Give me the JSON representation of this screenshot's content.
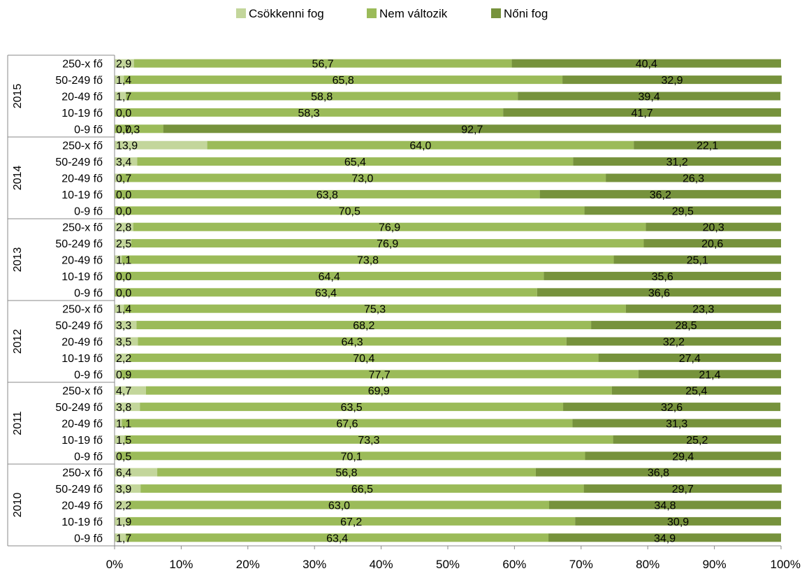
{
  "chart_data": {
    "type": "bar",
    "orientation": "horizontal",
    "stacked": "percent",
    "legend_position": "top",
    "grid": false,
    "xlim": [
      0,
      100
    ],
    "x_ticks": [
      "0%",
      "10%",
      "20%",
      "30%",
      "40%",
      "50%",
      "60%",
      "70%",
      "80%",
      "90%",
      "100%"
    ],
    "series": [
      {
        "name": "Csökkenni fog",
        "color": "#c3d69b"
      },
      {
        "name": "Nem változik",
        "color": "#9bbb59"
      },
      {
        "name": "Nőni fog",
        "color": "#76923c"
      }
    ],
    "groups": [
      {
        "year": "2015",
        "rows": [
          {
            "label": "250-x fő",
            "values": [
              "2,9",
              "56,7",
              "40,4"
            ]
          },
          {
            "label": "50-249 fő",
            "values": [
              "1,4",
              "65,8",
              "32,9"
            ]
          },
          {
            "label": "20-49 fő",
            "values": [
              "1,7",
              "58,8",
              "39,4"
            ]
          },
          {
            "label": "10-19 fő",
            "values": [
              "0,0",
              "58,3",
              "41,7"
            ]
          },
          {
            "label": "0-9 fő",
            "values": [
              "0,0",
              "7,3",
              "92,7"
            ]
          }
        ]
      },
      {
        "year": "2014",
        "rows": [
          {
            "label": "250-x fő",
            "values": [
              "13,9",
              "64,0",
              "22,1"
            ]
          },
          {
            "label": "50-249 fő",
            "values": [
              "3,4",
              "65,4",
              "31,2"
            ]
          },
          {
            "label": "20-49 fő",
            "values": [
              "0,7",
              "73,0",
              "26,3"
            ]
          },
          {
            "label": "10-19 fő",
            "values": [
              "0,0",
              "63,8",
              "36,2"
            ]
          },
          {
            "label": "0-9 fő",
            "values": [
              "0,0",
              "70,5",
              "29,5"
            ]
          }
        ]
      },
      {
        "year": "2013",
        "rows": [
          {
            "label": "250-x fő",
            "values": [
              "2,8",
              "76,9",
              "20,3"
            ]
          },
          {
            "label": "50-249 fő",
            "values": [
              "2,5",
              "76,9",
              "20,6"
            ]
          },
          {
            "label": "20-49 fő",
            "values": [
              "1,1",
              "73,8",
              "25,1"
            ]
          },
          {
            "label": "10-19 fő",
            "values": [
              "0,0",
              "64,4",
              "35,6"
            ]
          },
          {
            "label": "0-9 fő",
            "values": [
              "0,0",
              "63,4",
              "36,6"
            ]
          }
        ]
      },
      {
        "year": "2012",
        "rows": [
          {
            "label": "250-x fő",
            "values": [
              "1,4",
              "75,3",
              "23,3"
            ]
          },
          {
            "label": "50-249 fő",
            "values": [
              "3,3",
              "68,2",
              "28,5"
            ]
          },
          {
            "label": "20-49 fő",
            "values": [
              "3,5",
              "64,3",
              "32,2"
            ]
          },
          {
            "label": "10-19 fő",
            "values": [
              "2,2",
              "70,4",
              "27,4"
            ]
          },
          {
            "label": "0-9 fő",
            "values": [
              "0,9",
              "77,7",
              "21,4"
            ]
          }
        ]
      },
      {
        "year": "2011",
        "rows": [
          {
            "label": "250-x fő",
            "values": [
              "4,7",
              "69,9",
              "25,4"
            ]
          },
          {
            "label": "50-249 fő",
            "values": [
              "3,8",
              "63,5",
              "32,6"
            ]
          },
          {
            "label": "20-49 fő",
            "values": [
              "1,1",
              "67,6",
              "31,3"
            ]
          },
          {
            "label": "10-19 fő",
            "values": [
              "1,5",
              "73,3",
              "25,2"
            ]
          },
          {
            "label": "0-9 fő",
            "values": [
              "0,5",
              "70,1",
              "29,4"
            ]
          }
        ]
      },
      {
        "year": "2010",
        "rows": [
          {
            "label": "250-x fő",
            "values": [
              "6,4",
              "56,8",
              "36,8"
            ]
          },
          {
            "label": "50-249 fő",
            "values": [
              "3,9",
              "66,5",
              "29,7"
            ]
          },
          {
            "label": "20-49 fő",
            "values": [
              "2,2",
              "63,0",
              "34,8"
            ]
          },
          {
            "label": "10-19 fő",
            "values": [
              "1,9",
              "67,2",
              "30,9"
            ]
          },
          {
            "label": "0-9 fő",
            "values": [
              "1,7",
              "63,4",
              "34,9"
            ]
          }
        ]
      }
    ]
  }
}
